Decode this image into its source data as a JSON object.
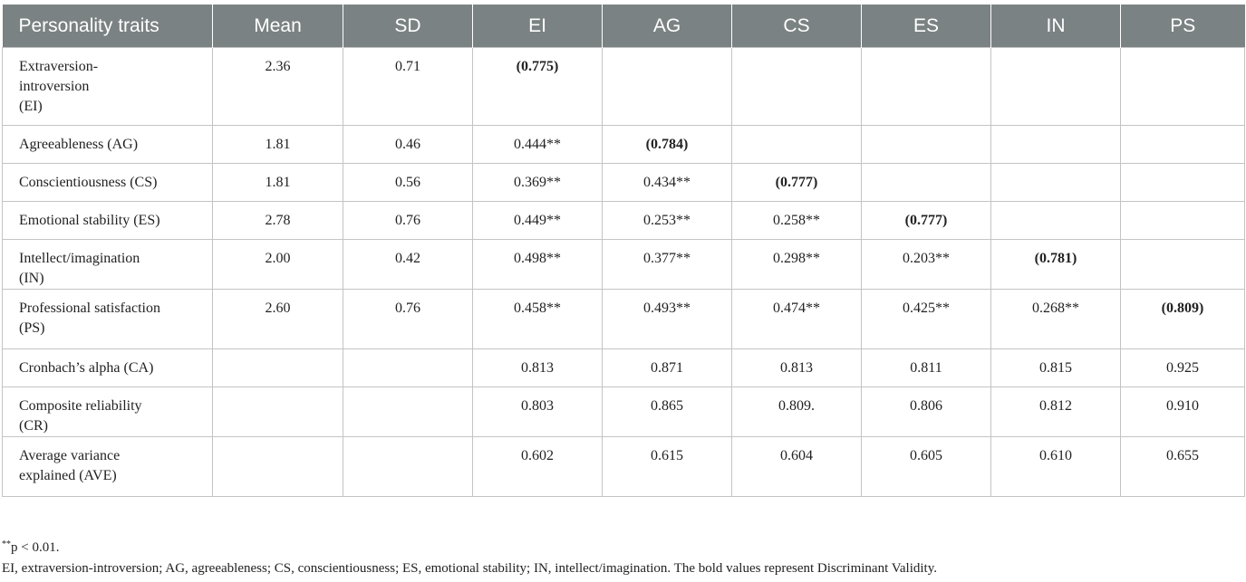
{
  "table": {
    "headers": [
      "Personality traits",
      "Mean",
      "SD",
      "EI",
      "AG",
      "CS",
      "ES",
      "IN",
      "PS"
    ],
    "rows": [
      {
        "cells": [
          "Extraversion-\nintroversion\n(EI)",
          "2.36",
          "0.71",
          "(0.775)",
          "",
          "",
          "",
          "",
          ""
        ],
        "bold": 3
      },
      {
        "cells": [
          "Agreeableness (AG)",
          "1.81",
          "0.46",
          "0.444**",
          "(0.784)",
          "",
          "",
          "",
          ""
        ],
        "bold": 4
      },
      {
        "cells": [
          "Conscientiousness (CS)",
          "1.81",
          "0.56",
          "0.369**",
          "0.434**",
          "(0.777)",
          "",
          "",
          ""
        ],
        "bold": 5
      },
      {
        "cells": [
          "Emotional stability (ES)",
          "2.78",
          "0.76",
          "0.449**",
          "0.253**",
          "0.258**",
          "(0.777)",
          "",
          ""
        ],
        "bold": 6
      },
      {
        "cells": [
          "Intellect/imagination\n(IN)",
          "2.00",
          "0.42",
          "0.498**",
          "0.377**",
          "0.298**",
          "0.203**",
          "(0.781)",
          ""
        ],
        "bold": 7
      },
      {
        "cells": [
          "Professional satisfaction\n(PS)",
          "2.60",
          "0.76",
          "0.458**",
          "0.493**",
          "0.474**",
          "0.425**",
          "0.268**",
          "(0.809)"
        ],
        "bold": 8
      },
      {
        "cells": [
          "Cronbach’s alpha (CA)",
          "",
          "",
          "0.813",
          "0.871",
          "0.813",
          "0.811",
          "0.815",
          "0.925"
        ],
        "bold": -1
      },
      {
        "cells": [
          "Composite reliability\n(CR)",
          "",
          "",
          "0.803",
          "0.865",
          "0.809.",
          "0.806",
          "0.812",
          "0.910"
        ],
        "bold": -1
      },
      {
        "cells": [
          "Average variance\nexplained (AVE)",
          "",
          "",
          "0.602",
          "0.615",
          "0.604",
          "0.605",
          "0.610",
          "0.655"
        ],
        "bold": -1
      }
    ]
  },
  "footnotes": {
    "sig_marker": "**",
    "sig_text": "p < 0.01.",
    "abbrev": "EI, extraversion-introversion; AG, agreeableness; CS, conscientiousness; ES, emotional stability; IN, intellect/imagination. The bold values represent Discriminant Validity."
  }
}
